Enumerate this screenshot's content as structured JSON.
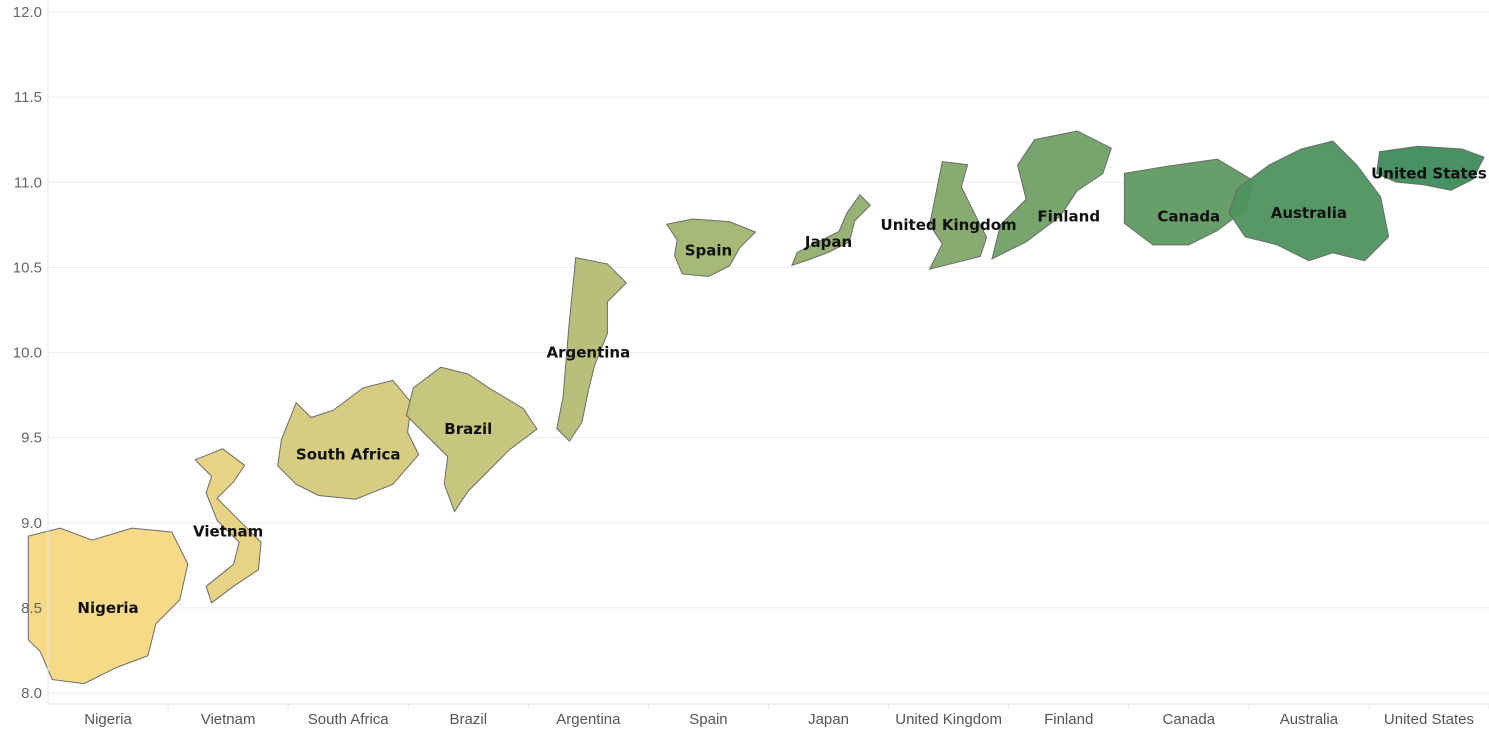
{
  "chart_data": {
    "type": "scatter",
    "title": "",
    "xlabel": "",
    "ylabel": "",
    "ylim": [
      8.0,
      12.0
    ],
    "yticks": [
      "8.0",
      "8.5",
      "9.0",
      "9.5",
      "10.0",
      "10.5",
      "11.0",
      "11.5",
      "12.0"
    ],
    "grid": true,
    "categories": [
      "Nigeria",
      "Vietnam",
      "South Africa",
      "Brazil",
      "Argentina",
      "Spain",
      "Japan",
      "United Kingdom",
      "Finland",
      "Canada",
      "Australia",
      "United States"
    ],
    "values": [
      8.5,
      8.95,
      9.4,
      9.55,
      10.0,
      10.6,
      10.65,
      10.75,
      10.8,
      10.8,
      10.82,
      11.05
    ],
    "mark_shape": "country-outline",
    "color_scale": [
      "#f7d882",
      "#3d8b5a"
    ],
    "labels": [
      "Nigeria",
      "Vietnam",
      "South Africa",
      "Brazil",
      "Argentina",
      "Spain",
      "Japan",
      "United Kingdom",
      "Finland",
      "Canada",
      "Australia",
      "United States"
    ]
  }
}
